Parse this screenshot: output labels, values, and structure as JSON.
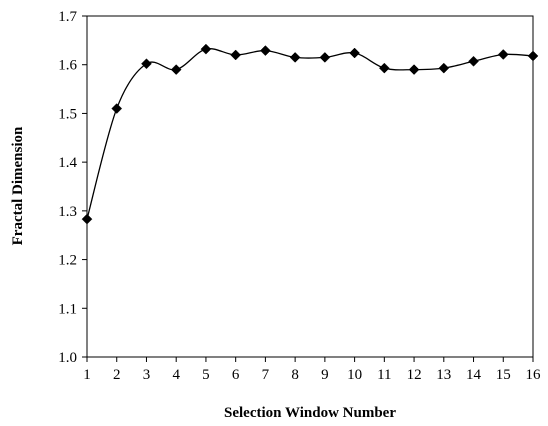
{
  "chart_data": {
    "type": "line",
    "title": "",
    "xlabel": "Selection Window Number",
    "ylabel": "Fractal Dimension",
    "x": [
      1,
      2,
      3,
      4,
      5,
      6,
      7,
      8,
      9,
      10,
      11,
      12,
      13,
      14,
      15,
      16
    ],
    "y": [
      1.283,
      1.51,
      1.602,
      1.59,
      1.632,
      1.62,
      1.629,
      1.615,
      1.615,
      1.624,
      1.593,
      1.59,
      1.593,
      1.607,
      1.621,
      1.618
    ],
    "xlim": [
      1,
      16
    ],
    "ylim": [
      1.0,
      1.7
    ],
    "x_ticks": [
      "1",
      "2",
      "3",
      "4",
      "5",
      "6",
      "7",
      "8",
      "9",
      "10",
      "11",
      "12",
      "13",
      "14",
      "15",
      "16"
    ],
    "y_ticks": [
      "1.0",
      "1.1",
      "1.2",
      "1.3",
      "1.4",
      "1.5",
      "1.6",
      "1.7"
    ],
    "grid": false,
    "legend": "none",
    "line_style": "smooth",
    "marker": "diamond",
    "color": "#000000"
  }
}
